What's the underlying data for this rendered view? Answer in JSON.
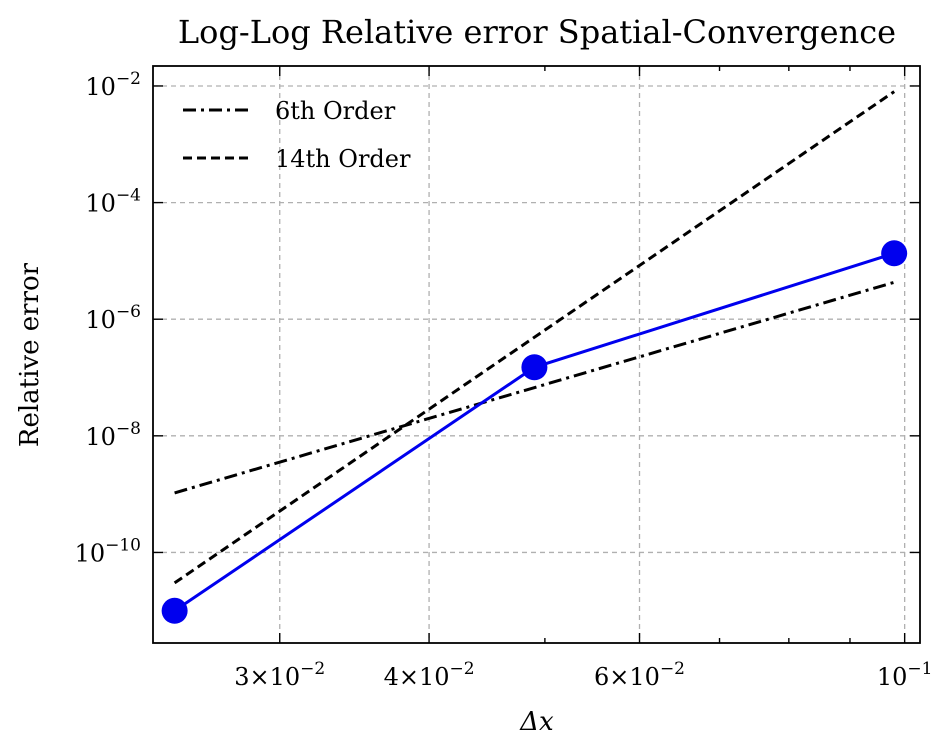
{
  "chart_data": {
    "type": "line",
    "title": "Log-Log Relative error Spatial-Convergence",
    "xlabel": "Δx",
    "ylabel": "Relative error",
    "xscale": "log",
    "yscale": "log",
    "xlim": [
      0.0235,
      0.103
    ],
    "ylim": [
      2.8e-12,
      0.022
    ],
    "grid": true,
    "legend_position": "top-left",
    "x_ticks": [
      {
        "value": 0.03,
        "mant": "3×10",
        "exp": "−2"
      },
      {
        "value": 0.04,
        "mant": "4×10",
        "exp": "−2"
      },
      {
        "value": 0.06,
        "mant": "6×10",
        "exp": "−2"
      },
      {
        "value": 0.1,
        "mant": "10",
        "exp": "−1"
      }
    ],
    "x_minor_ticks": [
      0.05,
      0.07,
      0.08,
      0.09
    ],
    "y_ticks": [
      {
        "value": 1e-10,
        "mant": "10",
        "exp": "−10"
      },
      {
        "value": 1e-08,
        "mant": "10",
        "exp": "−8"
      },
      {
        "value": 1e-06,
        "mant": "10",
        "exp": "−6"
      },
      {
        "value": 0.0001,
        "mant": "10",
        "exp": "−4"
      },
      {
        "value": 0.01,
        "mant": "10",
        "exp": "−2"
      }
    ],
    "series": [
      {
        "name": "",
        "color": "#0000ee",
        "style": "solid",
        "marker": "circle",
        "x": [
          0.0245,
          0.049,
          0.098
        ],
        "y": [
          1e-11,
          1.5e-07,
          1.35e-05
        ]
      },
      {
        "name": "6th Order",
        "color": "#000000",
        "style": "dashdot",
        "marker": "none",
        "x": [
          0.0245,
          0.098
        ],
        "y": [
          1.05e-09,
          4.3e-06
        ]
      },
      {
        "name": "14th Order",
        "color": "#000000",
        "style": "dashed",
        "marker": "none",
        "x": [
          0.0245,
          0.098
        ],
        "y": [
          3e-11,
          0.008
        ]
      }
    ]
  }
}
